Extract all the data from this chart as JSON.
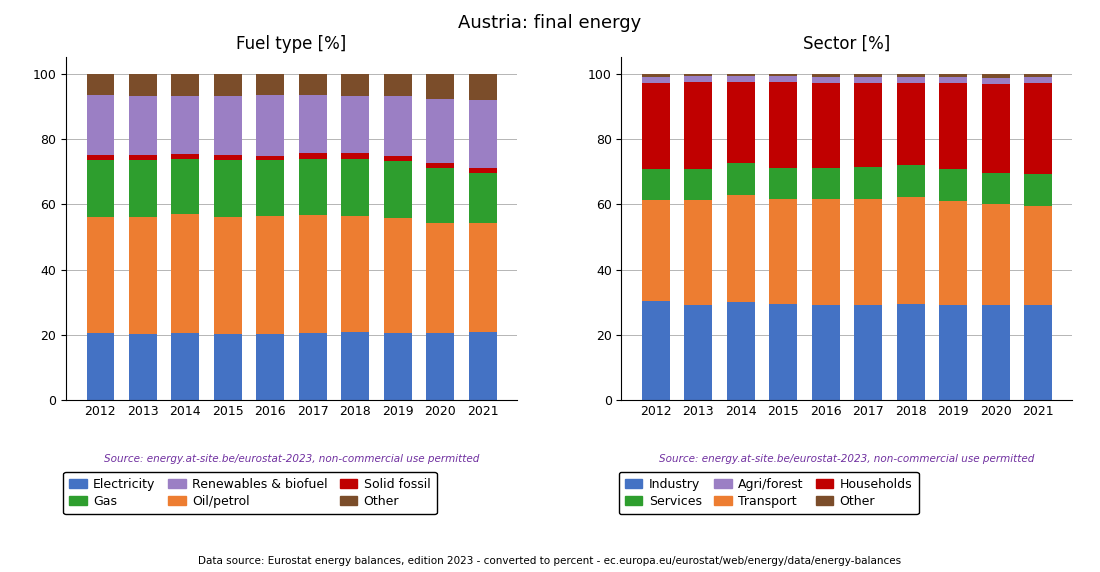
{
  "title": "Austria: final energy",
  "years": [
    2012,
    2013,
    2014,
    2015,
    2016,
    2017,
    2018,
    2019,
    2020,
    2021
  ],
  "fuel_type": {
    "subtitle": "Fuel type [%]",
    "source": "Source: energy.at-site.be/eurostat-2023, non-commercial use permitted",
    "stack_order": [
      "Electricity",
      "Oil/petrol",
      "Gas",
      "Solid fossil",
      "Renewables & biofuel",
      "Other"
    ],
    "series": {
      "Electricity": [
        20.5,
        20.2,
        20.7,
        20.3,
        20.2,
        20.5,
        20.8,
        20.7,
        20.7,
        21.0
      ],
      "Oil/petrol": [
        35.5,
        35.8,
        36.4,
        35.9,
        36.1,
        36.1,
        35.7,
        35.1,
        33.6,
        33.3
      ],
      "Gas": [
        17.5,
        17.4,
        16.8,
        17.3,
        17.1,
        17.4,
        17.5,
        17.4,
        16.8,
        15.4
      ],
      "Solid fossil": [
        1.5,
        1.7,
        1.5,
        1.5,
        1.5,
        1.6,
        1.6,
        1.5,
        1.5,
        1.3
      ],
      "Renewables & biofuel": [
        18.5,
        18.1,
        17.8,
        18.2,
        18.4,
        17.8,
        17.5,
        18.4,
        19.7,
        20.8
      ],
      "Other": [
        6.5,
        6.8,
        6.8,
        6.8,
        6.7,
        6.6,
        6.9,
        6.9,
        7.7,
        8.2
      ]
    },
    "colors": {
      "Electricity": "#4472c4",
      "Oil/petrol": "#ed7d31",
      "Gas": "#2e9e2e",
      "Solid fossil": "#c00000",
      "Renewables & biofuel": "#9b7fc4",
      "Other": "#7b4d2a"
    },
    "legend_order": [
      "Electricity",
      "Gas",
      "Renewables & biofuel",
      "Oil/petrol",
      "Solid fossil",
      "Other"
    ]
  },
  "sector": {
    "subtitle": "Sector [%]",
    "source": "Source: energy.at-site.be/eurostat-2023, non-commercial use permitted",
    "stack_order": [
      "Industry",
      "Transport",
      "Services",
      "Households",
      "Agri/forest",
      "Other"
    ],
    "series": {
      "Industry": [
        30.5,
        29.3,
        30.0,
        29.5,
        29.3,
        29.3,
        29.5,
        29.3,
        29.1,
        29.1
      ],
      "Transport": [
        30.8,
        32.0,
        32.8,
        32.1,
        32.4,
        32.4,
        32.7,
        31.8,
        30.9,
        30.3
      ],
      "Services": [
        9.5,
        9.5,
        9.8,
        9.5,
        9.5,
        9.7,
        9.8,
        9.6,
        9.6,
        9.8
      ],
      "Households": [
        26.2,
        26.5,
        24.7,
        26.2,
        25.9,
        25.7,
        25.1,
        26.3,
        27.3,
        27.8
      ],
      "Agri/forest": [
        1.8,
        1.8,
        1.8,
        1.8,
        1.8,
        1.8,
        1.8,
        1.8,
        1.8,
        1.8
      ],
      "Other": [
        1.2,
        0.9,
        0.9,
        0.9,
        1.1,
        1.1,
        1.1,
        1.2,
        1.3,
        1.2
      ]
    },
    "colors": {
      "Industry": "#4472c4",
      "Transport": "#ed7d31",
      "Services": "#2e9e2e",
      "Households": "#c00000",
      "Agri/forest": "#9b7fc4",
      "Other": "#7b4d2a"
    },
    "legend_order": [
      "Industry",
      "Services",
      "Agri/forest",
      "Transport",
      "Households",
      "Other"
    ]
  },
  "footer": "Data source: Eurostat energy balances, edition 2023 - converted to percent - ec.europa.eu/eurostat/web/energy/data/energy-balances",
  "source_color": "#7030a0",
  "ylim": [
    0,
    105
  ]
}
